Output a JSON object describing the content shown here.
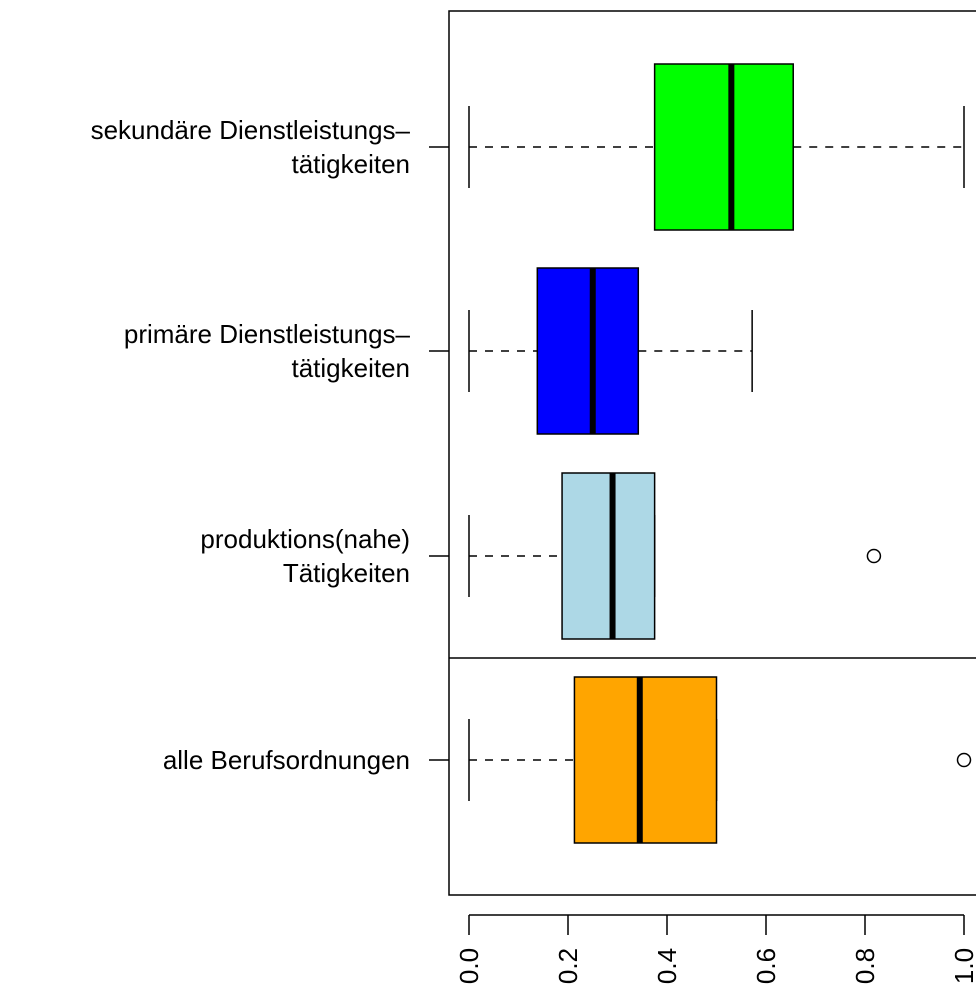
{
  "chart_data": {
    "type": "boxplot",
    "orientation": "horizontal",
    "xlim": [
      0.0,
      1.0
    ],
    "x_ticks": [
      "0.0",
      "0.2",
      "0.4",
      "0.6",
      "0.8",
      "1.0"
    ],
    "x_tick_values": [
      0.0,
      0.2,
      0.4,
      0.6,
      0.8,
      1.0
    ],
    "categories": [
      {
        "label_lines": [
          "sekundäre Dienstleistungs–",
          "tätigkeiten"
        ],
        "color": "#00ff00",
        "whisker_low": 0.0,
        "q1": 0.375,
        "median": 0.53,
        "q3": 0.655,
        "whisker_high": 1.0,
        "outliers": []
      },
      {
        "label_lines": [
          "primäre Dienstleistungs–",
          "tätigkeiten"
        ],
        "color": "#0000ff",
        "whisker_low": 0.0,
        "q1": 0.138,
        "median": 0.25,
        "q3": 0.342,
        "whisker_high": 0.572,
        "outliers": []
      },
      {
        "label_lines": [
          "produktions(nahe)",
          "Tätigkeiten"
        ],
        "color": "#add8e6",
        "whisker_low": 0.0,
        "q1": 0.188,
        "median": 0.29,
        "q3": 0.375,
        "whisker_high": 0.375,
        "outliers": [
          0.818
        ]
      },
      {
        "label_lines": [
          "alle Berufsordnungen"
        ],
        "color": "#ffa500",
        "whisker_low": 0.0,
        "q1": 0.213,
        "median": 0.345,
        "q3": 0.5,
        "whisker_high": 0.5,
        "outliers": [
          1.0
        ]
      }
    ],
    "separator_after_category": 2
  }
}
